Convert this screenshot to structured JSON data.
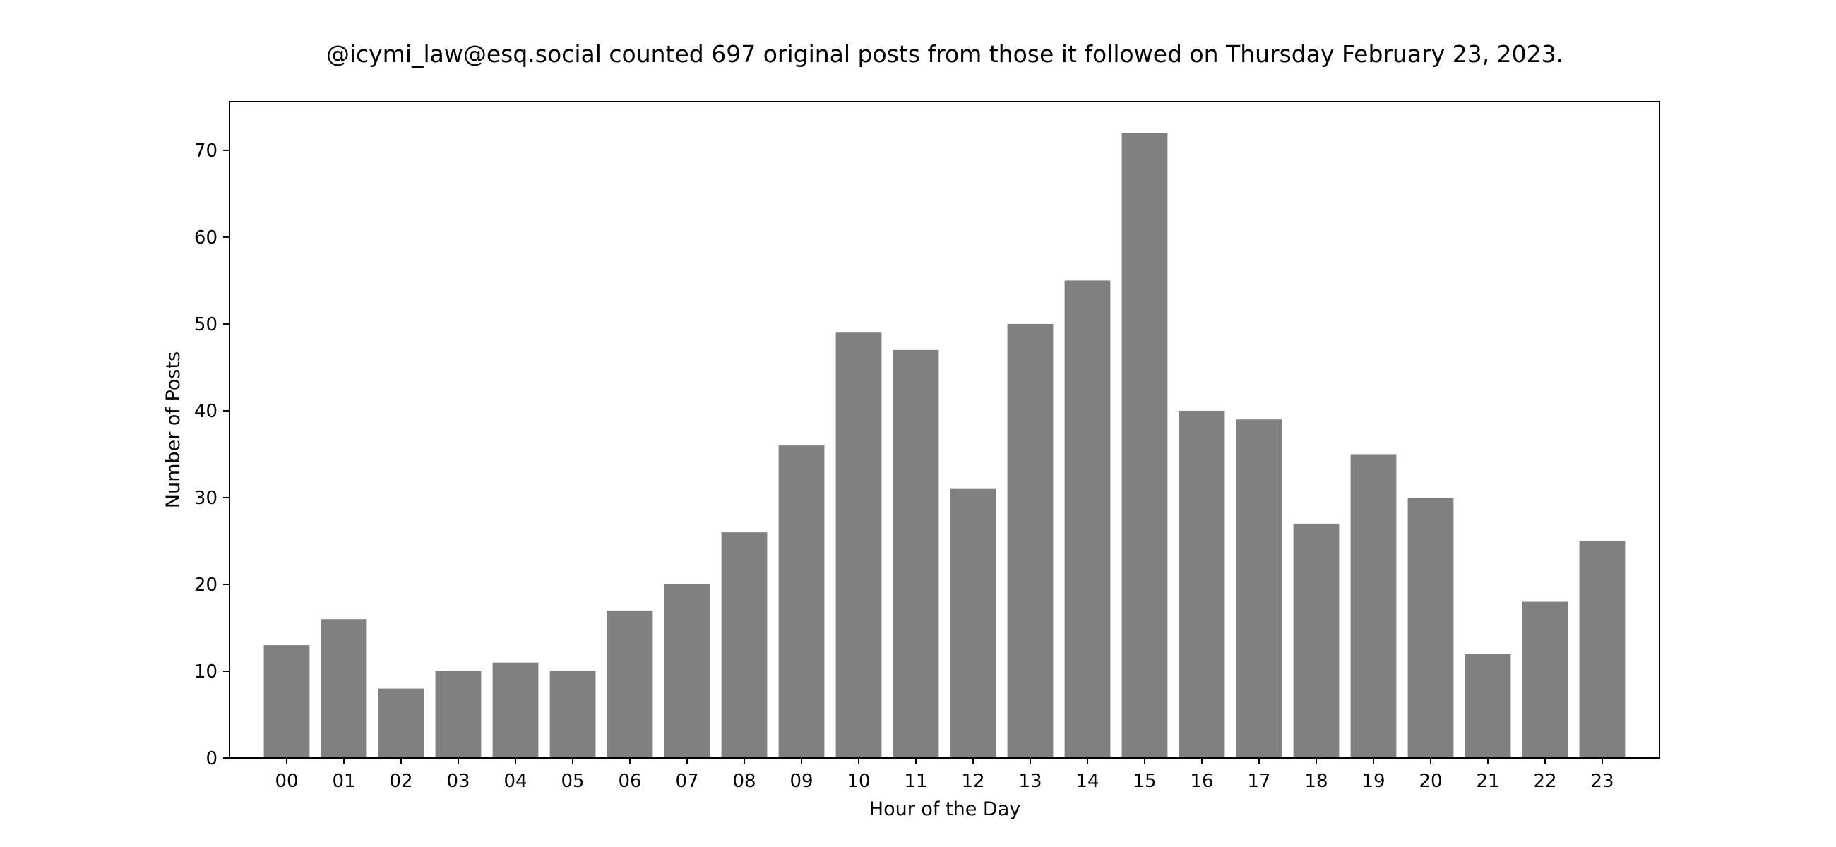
{
  "chart_data": {
    "type": "bar",
    "title": "@icymi_law@esq.social counted 697 original posts from those it followed on Thursday February 23, 2023.",
    "xlabel": "Hour of the Day",
    "ylabel": "Number of Posts",
    "categories": [
      "00",
      "01",
      "02",
      "03",
      "04",
      "05",
      "06",
      "07",
      "08",
      "09",
      "10",
      "11",
      "12",
      "13",
      "14",
      "15",
      "16",
      "17",
      "18",
      "19",
      "20",
      "21",
      "22",
      "23"
    ],
    "values": [
      13,
      16,
      8,
      10,
      11,
      10,
      17,
      20,
      26,
      36,
      49,
      47,
      31,
      50,
      55,
      72,
      40,
      39,
      27,
      35,
      30,
      12,
      18,
      25
    ],
    "ylim": [
      0,
      75.6
    ],
    "yticks": [
      0,
      10,
      20,
      30,
      40,
      50,
      60,
      70
    ],
    "bar_color": "#808080",
    "grid": false,
    "legend": "none"
  }
}
